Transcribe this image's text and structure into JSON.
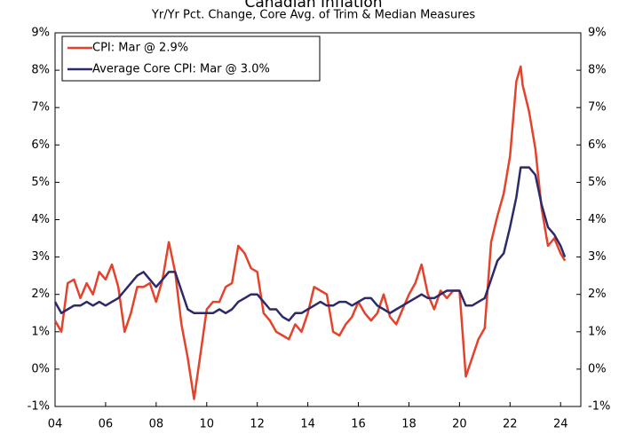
{
  "chart_data": {
    "type": "line",
    "title": "Canadian Inflation",
    "subtitle": "Yr/Yr Pct. Change, Core Avg. of Trim & Median Measures",
    "x": [
      2004,
      2004.25,
      2004.5,
      2004.75,
      2005,
      2005.25,
      2005.5,
      2005.75,
      2006,
      2006.25,
      2006.5,
      2006.75,
      2007,
      2007.25,
      2007.5,
      2007.75,
      2008,
      2008.25,
      2008.5,
      2008.75,
      2009,
      2009.25,
      2009.5,
      2009.75,
      2010,
      2010.25,
      2010.5,
      2010.75,
      2011,
      2011.25,
      2011.5,
      2011.75,
      2012,
      2012.25,
      2012.5,
      2012.75,
      2013,
      2013.25,
      2013.5,
      2013.75,
      2014,
      2014.25,
      2014.5,
      2014.75,
      2015,
      2015.25,
      2015.5,
      2015.75,
      2016,
      2016.25,
      2016.5,
      2016.75,
      2017,
      2017.25,
      2017.5,
      2017.75,
      2018,
      2018.25,
      2018.5,
      2018.75,
      2019,
      2019.25,
      2019.5,
      2019.75,
      2020,
      2020.25,
      2020.5,
      2020.75,
      2021,
      2021.25,
      2021.5,
      2021.75,
      2022,
      2022.25,
      2022.42,
      2022.5,
      2022.75,
      2023,
      2023.25,
      2023.5,
      2023.75,
      2024,
      2024.17
    ],
    "series": [
      {
        "name": "CPI: Mar @ 2.9%",
        "color": "#e4432b",
        "values": [
          1.3,
          1.0,
          2.3,
          2.4,
          1.9,
          2.3,
          2.0,
          2.6,
          2.4,
          2.8,
          2.2,
          1.0,
          1.5,
          2.2,
          2.2,
          2.3,
          1.8,
          2.4,
          3.4,
          2.6,
          1.2,
          0.3,
          -0.8,
          0.4,
          1.6,
          1.8,
          1.8,
          2.2,
          2.3,
          3.3,
          3.1,
          2.7,
          2.6,
          1.5,
          1.3,
          1.0,
          0.9,
          0.8,
          1.2,
          1.0,
          1.5,
          2.2,
          2.1,
          2.0,
          1.0,
          0.9,
          1.2,
          1.4,
          1.8,
          1.5,
          1.3,
          1.5,
          2.0,
          1.4,
          1.2,
          1.6,
          2.0,
          2.3,
          2.8,
          2.0,
          1.6,
          2.1,
          1.9,
          2.1,
          2.1,
          -0.2,
          0.3,
          0.8,
          1.1,
          3.4,
          4.1,
          4.7,
          5.7,
          7.7,
          8.1,
          7.6,
          6.9,
          5.9,
          4.3,
          3.3,
          3.5,
          3.1,
          2.9
        ]
      },
      {
        "name": "Average Core CPI: Mar @ 3.0%",
        "color": "#2c2a6b",
        "values": [
          1.8,
          1.5,
          1.6,
          1.7,
          1.7,
          1.8,
          1.7,
          1.8,
          1.7,
          1.8,
          1.9,
          2.1,
          2.3,
          2.5,
          2.6,
          2.4,
          2.2,
          2.4,
          2.6,
          2.6,
          2.1,
          1.6,
          1.5,
          1.5,
          1.5,
          1.5,
          1.6,
          1.5,
          1.6,
          1.8,
          1.9,
          2.0,
          2.0,
          1.8,
          1.6,
          1.6,
          1.4,
          1.3,
          1.5,
          1.5,
          1.6,
          1.7,
          1.8,
          1.7,
          1.7,
          1.8,
          1.8,
          1.7,
          1.8,
          1.9,
          1.9,
          1.7,
          1.6,
          1.5,
          1.6,
          1.7,
          1.8,
          1.9,
          2.0,
          1.9,
          1.9,
          2.0,
          2.1,
          2.1,
          2.1,
          1.7,
          1.7,
          1.8,
          1.9,
          2.4,
          2.9,
          3.1,
          3.8,
          4.6,
          5.4,
          5.4,
          5.4,
          5.2,
          4.4,
          3.8,
          3.6,
          3.3,
          3.0
        ]
      }
    ],
    "xlim": [
      2004,
      2024.8
    ],
    "xticks": [
      {
        "value": 2004,
        "label": "04"
      },
      {
        "value": 2006,
        "label": "06"
      },
      {
        "value": 2008,
        "label": "08"
      },
      {
        "value": 2010,
        "label": "10"
      },
      {
        "value": 2012,
        "label": "12"
      },
      {
        "value": 2014,
        "label": "14"
      },
      {
        "value": 2016,
        "label": "16"
      },
      {
        "value": 2018,
        "label": "18"
      },
      {
        "value": 2020,
        "label": "20"
      },
      {
        "value": 2022,
        "label": "22"
      },
      {
        "value": 2024,
        "label": "24"
      }
    ],
    "ylim": [
      -1,
      9
    ],
    "yticks": [
      {
        "value": -1,
        "label": "-1%"
      },
      {
        "value": 0,
        "label": "0%"
      },
      {
        "value": 1,
        "label": "1%"
      },
      {
        "value": 2,
        "label": "2%"
      },
      {
        "value": 3,
        "label": "3%"
      },
      {
        "value": 4,
        "label": "4%"
      },
      {
        "value": 5,
        "label": "5%"
      },
      {
        "value": 6,
        "label": "6%"
      },
      {
        "value": 7,
        "label": "7%"
      },
      {
        "value": 8,
        "label": "8%"
      },
      {
        "value": 9,
        "label": "9%"
      }
    ],
    "y2lim": [
      -1,
      9
    ],
    "y2ticks": [
      {
        "value": -1,
        "label": "-1%"
      },
      {
        "value": 0,
        "label": "0%"
      },
      {
        "value": 1,
        "label": "1%"
      },
      {
        "value": 2,
        "label": "2%"
      },
      {
        "value": 3,
        "label": "3%"
      },
      {
        "value": 4,
        "label": "4%"
      },
      {
        "value": 5,
        "label": "5%"
      },
      {
        "value": 6,
        "label": "6%"
      },
      {
        "value": 7,
        "label": "7%"
      },
      {
        "value": 8,
        "label": "8%"
      },
      {
        "value": 9,
        "label": "9%"
      }
    ],
    "legend": "upper left"
  }
}
